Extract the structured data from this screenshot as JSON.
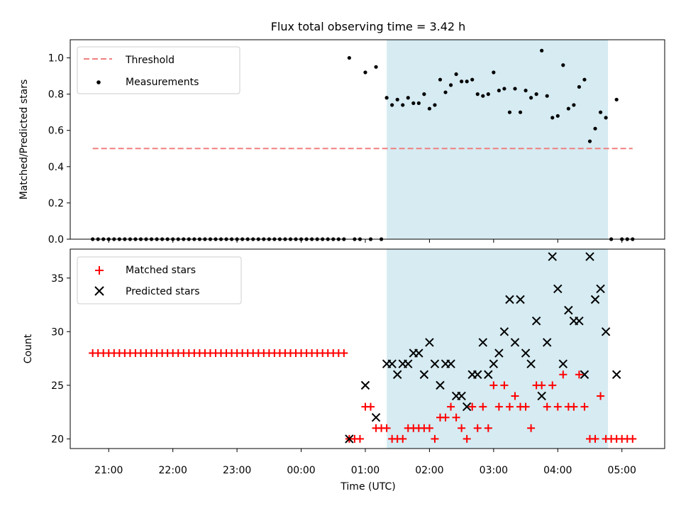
{
  "figure": {
    "title": "Flux total observing time = 3.42 h",
    "xlabel": "Time (UTC)",
    "x_tick_labels": [
      "21:00",
      "22:00",
      "23:00",
      "00:00",
      "01:00",
      "02:00",
      "03:00",
      "04:00",
      "05:00"
    ],
    "shaded_interval_color": "#add8e6",
    "shaded_interval": [
      "01:20",
      "04:47"
    ]
  },
  "chart_data": [
    {
      "type": "scatter",
      "title": "Flux total observing time = 3.42 h",
      "xlabel": "",
      "ylabel": "Matched/Predicted stars",
      "ylim": [
        0,
        1.1
      ],
      "y_ticks": [
        "0.0",
        "0.2",
        "0.4",
        "0.6",
        "0.8",
        "1.0"
      ],
      "shaded_interval": [
        "01:20",
        "04:47"
      ],
      "legend_position": "top-left",
      "legend": [
        "Threshold",
        "Measurements"
      ],
      "threshold": {
        "name": "Threshold",
        "value": 0.5,
        "x_range": [
          "20:45",
          "05:10"
        ],
        "color": "#f08080",
        "style": "dashed"
      },
      "series": [
        {
          "name": "Measurements",
          "color": "#000000",
          "marker": "dot",
          "points": [
            [
              "20:45",
              0.0
            ],
            [
              "20:50",
              0.0
            ],
            [
              "20:55",
              0.0
            ],
            [
              "21:00",
              0.0
            ],
            [
              "21:05",
              0.0
            ],
            [
              "21:10",
              0.0
            ],
            [
              "21:15",
              0.0
            ],
            [
              "21:20",
              0.0
            ],
            [
              "21:25",
              0.0
            ],
            [
              "21:30",
              0.0
            ],
            [
              "21:35",
              0.0
            ],
            [
              "21:40",
              0.0
            ],
            [
              "21:45",
              0.0
            ],
            [
              "21:50",
              0.0
            ],
            [
              "21:55",
              0.0
            ],
            [
              "22:00",
              0.0
            ],
            [
              "22:05",
              0.0
            ],
            [
              "22:10",
              0.0
            ],
            [
              "22:15",
              0.0
            ],
            [
              "22:20",
              0.0
            ],
            [
              "22:25",
              0.0
            ],
            [
              "22:30",
              0.0
            ],
            [
              "22:35",
              0.0
            ],
            [
              "22:40",
              0.0
            ],
            [
              "22:45",
              0.0
            ],
            [
              "22:50",
              0.0
            ],
            [
              "22:55",
              0.0
            ],
            [
              "23:00",
              0.0
            ],
            [
              "23:05",
              0.0
            ],
            [
              "23:10",
              0.0
            ],
            [
              "23:15",
              0.0
            ],
            [
              "23:20",
              0.0
            ],
            [
              "23:25",
              0.0
            ],
            [
              "23:30",
              0.0
            ],
            [
              "23:35",
              0.0
            ],
            [
              "23:40",
              0.0
            ],
            [
              "23:45",
              0.0
            ],
            [
              "23:50",
              0.0
            ],
            [
              "23:55",
              0.0
            ],
            [
              "00:00",
              0.0
            ],
            [
              "00:05",
              0.0
            ],
            [
              "00:10",
              0.0
            ],
            [
              "00:15",
              0.0
            ],
            [
              "00:20",
              0.0
            ],
            [
              "00:25",
              0.0
            ],
            [
              "00:30",
              0.0
            ],
            [
              "00:35",
              0.0
            ],
            [
              "00:40",
              0.0
            ],
            [
              "00:45",
              1.0
            ],
            [
              "00:50",
              0.0
            ],
            [
              "00:55",
              0.0
            ],
            [
              "01:00",
              0.92
            ],
            [
              "01:05",
              0.0
            ],
            [
              "01:10",
              0.95
            ],
            [
              "01:15",
              0.0
            ],
            [
              "01:20",
              0.78
            ],
            [
              "01:25",
              0.74
            ],
            [
              "01:30",
              0.77
            ],
            [
              "01:35",
              0.74
            ],
            [
              "01:40",
              0.78
            ],
            [
              "01:45",
              0.75
            ],
            [
              "01:50",
              0.75
            ],
            [
              "01:55",
              0.8
            ],
            [
              "02:00",
              0.72
            ],
            [
              "02:05",
              0.74
            ],
            [
              "02:10",
              0.88
            ],
            [
              "02:15",
              0.81
            ],
            [
              "02:20",
              0.85
            ],
            [
              "02:25",
              0.91
            ],
            [
              "02:30",
              0.87
            ],
            [
              "02:35",
              0.87
            ],
            [
              "02:40",
              0.88
            ],
            [
              "02:45",
              0.8
            ],
            [
              "02:50",
              0.79
            ],
            [
              "02:55",
              0.8
            ],
            [
              "03:00",
              0.92
            ],
            [
              "03:05",
              0.82
            ],
            [
              "03:10",
              0.83
            ],
            [
              "03:15",
              0.7
            ],
            [
              "03:20",
              0.83
            ],
            [
              "03:25",
              0.7
            ],
            [
              "03:30",
              0.82
            ],
            [
              "03:35",
              0.78
            ],
            [
              "03:40",
              0.8
            ],
            [
              "03:45",
              1.04
            ],
            [
              "03:50",
              0.79
            ],
            [
              "03:55",
              0.67
            ],
            [
              "04:00",
              0.68
            ],
            [
              "04:05",
              0.96
            ],
            [
              "04:10",
              0.72
            ],
            [
              "04:15",
              0.74
            ],
            [
              "04:20",
              0.84
            ],
            [
              "04:25",
              0.88
            ],
            [
              "04:30",
              0.54
            ],
            [
              "04:35",
              0.61
            ],
            [
              "04:40",
              0.7
            ],
            [
              "04:45",
              0.67
            ],
            [
              "04:50",
              0.0
            ],
            [
              "04:55",
              0.77
            ],
            [
              "05:00",
              0.0
            ],
            [
              "05:05",
              0.0
            ],
            [
              "05:10",
              0.0
            ]
          ]
        }
      ]
    },
    {
      "type": "scatter",
      "title": "",
      "xlabel": "Time (UTC)",
      "ylabel": "Count",
      "ylim": [
        19.1,
        37.7
      ],
      "y_ticks": [
        "20",
        "25",
        "30",
        "35"
      ],
      "shaded_interval": [
        "01:20",
        "04:47"
      ],
      "legend_position": "top-left",
      "legend": [
        "Matched stars",
        "Predicted stars"
      ],
      "series": [
        {
          "name": "Matched stars",
          "color": "#ff0000",
          "marker": "plus",
          "points": [
            [
              "20:45",
              28
            ],
            [
              "20:50",
              28
            ],
            [
              "20:55",
              28
            ],
            [
              "21:00",
              28
            ],
            [
              "21:05",
              28
            ],
            [
              "21:10",
              28
            ],
            [
              "21:15",
              28
            ],
            [
              "21:20",
              28
            ],
            [
              "21:25",
              28
            ],
            [
              "21:30",
              28
            ],
            [
              "21:35",
              28
            ],
            [
              "21:40",
              28
            ],
            [
              "21:45",
              28
            ],
            [
              "21:50",
              28
            ],
            [
              "21:55",
              28
            ],
            [
              "22:00",
              28
            ],
            [
              "22:05",
              28
            ],
            [
              "22:10",
              28
            ],
            [
              "22:15",
              28
            ],
            [
              "22:20",
              28
            ],
            [
              "22:25",
              28
            ],
            [
              "22:30",
              28
            ],
            [
              "22:35",
              28
            ],
            [
              "22:40",
              28
            ],
            [
              "22:45",
              28
            ],
            [
              "22:50",
              28
            ],
            [
              "22:55",
              28
            ],
            [
              "23:00",
              28
            ],
            [
              "23:05",
              28
            ],
            [
              "23:10",
              28
            ],
            [
              "23:15",
              28
            ],
            [
              "23:20",
              28
            ],
            [
              "23:25",
              28
            ],
            [
              "23:30",
              28
            ],
            [
              "23:35",
              28
            ],
            [
              "23:40",
              28
            ],
            [
              "23:45",
              28
            ],
            [
              "23:50",
              28
            ],
            [
              "23:55",
              28
            ],
            [
              "00:00",
              28
            ],
            [
              "00:05",
              28
            ],
            [
              "00:10",
              28
            ],
            [
              "00:15",
              28
            ],
            [
              "00:20",
              28
            ],
            [
              "00:25",
              28
            ],
            [
              "00:30",
              28
            ],
            [
              "00:35",
              28
            ],
            [
              "00:40",
              28
            ],
            [
              "00:45",
              20
            ],
            [
              "00:50",
              20
            ],
            [
              "00:55",
              20
            ],
            [
              "01:00",
              23
            ],
            [
              "01:05",
              23
            ],
            [
              "01:10",
              21
            ],
            [
              "01:15",
              21
            ],
            [
              "01:20",
              21
            ],
            [
              "01:25",
              20
            ],
            [
              "01:30",
              20
            ],
            [
              "01:35",
              20
            ],
            [
              "01:40",
              21
            ],
            [
              "01:45",
              21
            ],
            [
              "01:50",
              21
            ],
            [
              "01:55",
              21
            ],
            [
              "02:00",
              21
            ],
            [
              "02:05",
              20
            ],
            [
              "02:10",
              22
            ],
            [
              "02:15",
              22
            ],
            [
              "02:20",
              23
            ],
            [
              "02:25",
              22
            ],
            [
              "02:30",
              21
            ],
            [
              "02:35",
              20
            ],
            [
              "02:40",
              23
            ],
            [
              "02:45",
              21
            ],
            [
              "02:50",
              23
            ],
            [
              "02:55",
              21
            ],
            [
              "03:00",
              25
            ],
            [
              "03:05",
              23
            ],
            [
              "03:10",
              25
            ],
            [
              "03:15",
              23
            ],
            [
              "03:20",
              24
            ],
            [
              "03:25",
              23
            ],
            [
              "03:30",
              23
            ],
            [
              "03:35",
              21
            ],
            [
              "03:40",
              25
            ],
            [
              "03:45",
              25
            ],
            [
              "03:50",
              23
            ],
            [
              "03:55",
              25
            ],
            [
              "04:00",
              23
            ],
            [
              "04:05",
              26
            ],
            [
              "04:10",
              23
            ],
            [
              "04:15",
              23
            ],
            [
              "04:20",
              26
            ],
            [
              "04:25",
              23
            ],
            [
              "04:30",
              20
            ],
            [
              "04:35",
              20
            ],
            [
              "04:40",
              24
            ],
            [
              "04:45",
              20
            ],
            [
              "04:50",
              20
            ],
            [
              "04:55",
              20
            ],
            [
              "05:00",
              20
            ],
            [
              "05:05",
              20
            ],
            [
              "05:10",
              20
            ]
          ]
        },
        {
          "name": "Predicted stars",
          "color": "#000000",
          "marker": "x",
          "points": [
            [
              "00:45",
              20
            ],
            [
              "01:00",
              25
            ],
            [
              "01:10",
              22
            ],
            [
              "01:20",
              27
            ],
            [
              "01:25",
              27
            ],
            [
              "01:30",
              26
            ],
            [
              "01:35",
              27
            ],
            [
              "01:40",
              27
            ],
            [
              "01:45",
              28
            ],
            [
              "01:50",
              28
            ],
            [
              "01:55",
              26
            ],
            [
              "02:00",
              29
            ],
            [
              "02:05",
              27
            ],
            [
              "02:10",
              25
            ],
            [
              "02:15",
              27
            ],
            [
              "02:20",
              27
            ],
            [
              "02:25",
              24
            ],
            [
              "02:30",
              24
            ],
            [
              "02:35",
              23
            ],
            [
              "02:40",
              26
            ],
            [
              "02:45",
              26
            ],
            [
              "02:50",
              29
            ],
            [
              "02:55",
              26
            ],
            [
              "03:00",
              27
            ],
            [
              "03:05",
              28
            ],
            [
              "03:10",
              30
            ],
            [
              "03:15",
              33
            ],
            [
              "03:20",
              29
            ],
            [
              "03:25",
              33
            ],
            [
              "03:30",
              28
            ],
            [
              "03:35",
              27
            ],
            [
              "03:40",
              31
            ],
            [
              "03:45",
              24
            ],
            [
              "03:50",
              29
            ],
            [
              "03:55",
              37
            ],
            [
              "04:00",
              34
            ],
            [
              "04:05",
              27
            ],
            [
              "04:10",
              32
            ],
            [
              "04:15",
              31
            ],
            [
              "04:20",
              31
            ],
            [
              "04:25",
              26
            ],
            [
              "04:30",
              37
            ],
            [
              "04:35",
              33
            ],
            [
              "04:40",
              34
            ],
            [
              "04:45",
              30
            ],
            [
              "04:55",
              26
            ]
          ]
        }
      ]
    }
  ]
}
